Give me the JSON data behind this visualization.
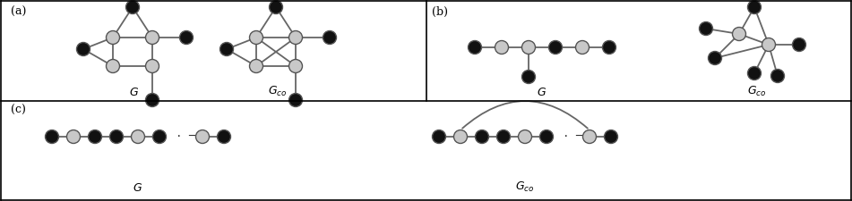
{
  "fig_width": 9.51,
  "fig_height": 2.25,
  "dpi": 100,
  "node_gray": "#c8c8c8",
  "node_black": "#111111",
  "edge_color": "#666666",
  "panel_a_label": "(a)",
  "panel_b_label": "(b)",
  "panel_c_label": "(c)",
  "G_label": "G",
  "Gco_label": "G_{co}"
}
